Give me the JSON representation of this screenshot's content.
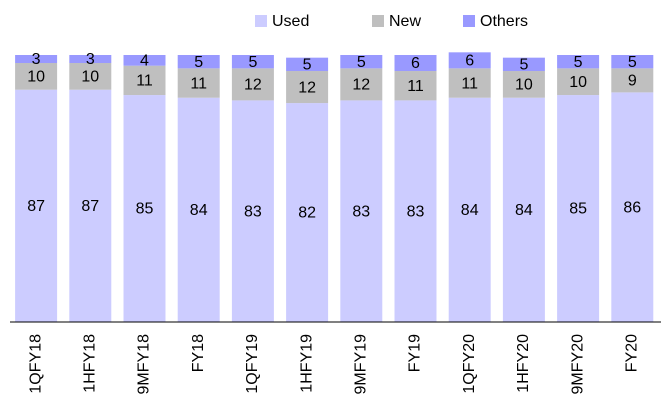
{
  "chart_data": {
    "type": "stacked-bar",
    "categories": [
      "1QFY18",
      "1HFY18",
      "9MFY18",
      "FY18",
      "1QFY19",
      "1HFY19",
      "9MFY19",
      "FY19",
      "1QFY20",
      "1HFY20",
      "9MFY20",
      "FY20"
    ],
    "series": [
      {
        "name": "Used",
        "color": "#ccccff",
        "values": [
          87,
          87,
          85,
          84,
          83,
          82,
          83,
          83,
          84,
          84,
          85,
          86
        ]
      },
      {
        "name": "New",
        "color": "#bfbfbf",
        "values": [
          10,
          10,
          11,
          11,
          12,
          12,
          12,
          11,
          11,
          10,
          10,
          9
        ]
      },
      {
        "name": "Others",
        "color": "#9999ff",
        "values": [
          3,
          3,
          4,
          5,
          5,
          5,
          5,
          6,
          6,
          5,
          5,
          5
        ]
      }
    ],
    "ylim": [
      0,
      100
    ],
    "legend": "top"
  }
}
